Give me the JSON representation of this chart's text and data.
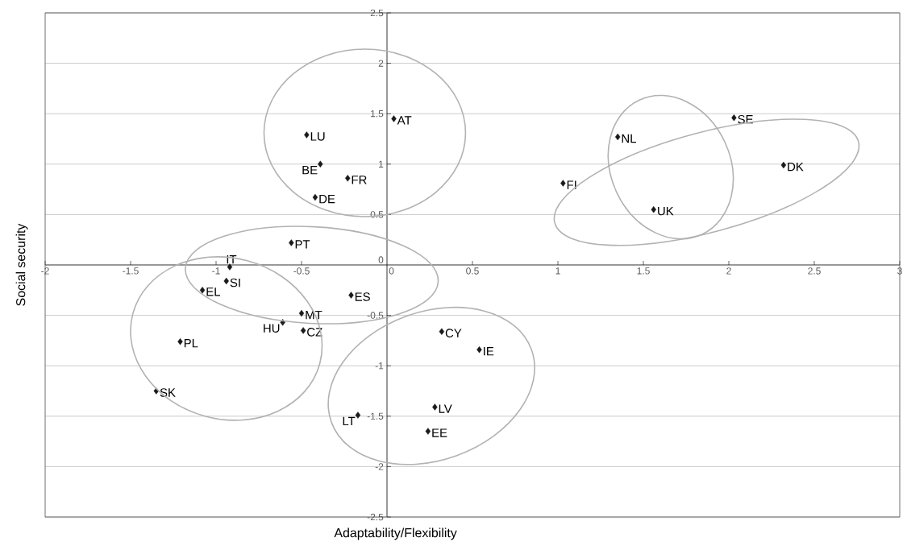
{
  "chart_data": {
    "type": "scatter",
    "xlabel": "Adaptability/Flexibility",
    "ylabel": "Social security",
    "x": [
      0.04,
      -0.47,
      -0.39,
      -0.23,
      -0.42,
      -0.56,
      -0.92,
      -0.94,
      -1.08,
      -0.21,
      -0.5,
      -0.61,
      -0.49,
      -1.21,
      -1.35,
      -0.17,
      0.32,
      0.54,
      0.28,
      0.24,
      2.03,
      1.35,
      2.32,
      1.03,
      1.56
    ],
    "values": [
      1.45,
      1.29,
      1.0,
      0.86,
      0.67,
      0.22,
      -0.02,
      -0.16,
      -0.25,
      -0.3,
      -0.48,
      -0.57,
      -0.65,
      -0.76,
      -1.25,
      -1.49,
      -0.66,
      -0.84,
      -1.41,
      -1.65,
      1.46,
      1.27,
      0.99,
      0.81,
      0.55
    ],
    "color": "#1a1a1a",
    "marker": "diamond",
    "grid": "y",
    "xlim": [
      -2,
      3
    ],
    "ylim": [
      -2.5,
      2.5
    ],
    "xticks": [
      -2,
      -1.5,
      -1,
      -0.5,
      0,
      0.5,
      1,
      1.5,
      2,
      2.5,
      3
    ],
    "yticks": [
      -2.5,
      -2,
      -1.5,
      -1,
      -0.5,
      0,
      0.5,
      1,
      1.5,
      2,
      2.5
    ],
    "annotations": [
      {
        "text": "AT",
        "x": 0.04,
        "y": 1.45
      },
      {
        "text": "LU",
        "x": -0.47,
        "y": 1.29
      },
      {
        "text": "BE",
        "x": -0.39,
        "y": 1.0
      },
      {
        "text": "FR",
        "x": -0.23,
        "y": 0.86
      },
      {
        "text": "DE",
        "x": -0.42,
        "y": 0.67
      },
      {
        "text": "PT",
        "x": -0.56,
        "y": 0.22
      },
      {
        "text": "IT",
        "x": -0.92,
        "y": -0.02
      },
      {
        "text": "SI",
        "x": -0.94,
        "y": -0.16
      },
      {
        "text": "EL",
        "x": -1.08,
        "y": -0.25
      },
      {
        "text": "ES",
        "x": -0.21,
        "y": -0.3
      },
      {
        "text": "MT",
        "x": -0.5,
        "y": -0.48
      },
      {
        "text": "HU",
        "x": -0.61,
        "y": -0.57
      },
      {
        "text": "CZ",
        "x": -0.49,
        "y": -0.65
      },
      {
        "text": "PL",
        "x": -1.21,
        "y": -0.76
      },
      {
        "text": "SK",
        "x": -1.35,
        "y": -1.25
      },
      {
        "text": "LT",
        "x": -0.17,
        "y": -1.49
      },
      {
        "text": "CY",
        "x": 0.32,
        "y": -0.66
      },
      {
        "text": "IE",
        "x": 0.54,
        "y": -0.84
      },
      {
        "text": "LV",
        "x": 0.28,
        "y": -1.41
      },
      {
        "text": "EE",
        "x": 0.24,
        "y": -1.65
      },
      {
        "text": "SE",
        "x": 2.03,
        "y": 1.46
      },
      {
        "text": "NL",
        "x": 1.35,
        "y": 1.27
      },
      {
        "text": "DK",
        "x": 2.32,
        "y": 0.99
      },
      {
        "text": "FI",
        "x": 1.03,
        "y": 0.81
      },
      {
        "text": "UK",
        "x": 1.56,
        "y": 0.55
      }
    ]
  }
}
